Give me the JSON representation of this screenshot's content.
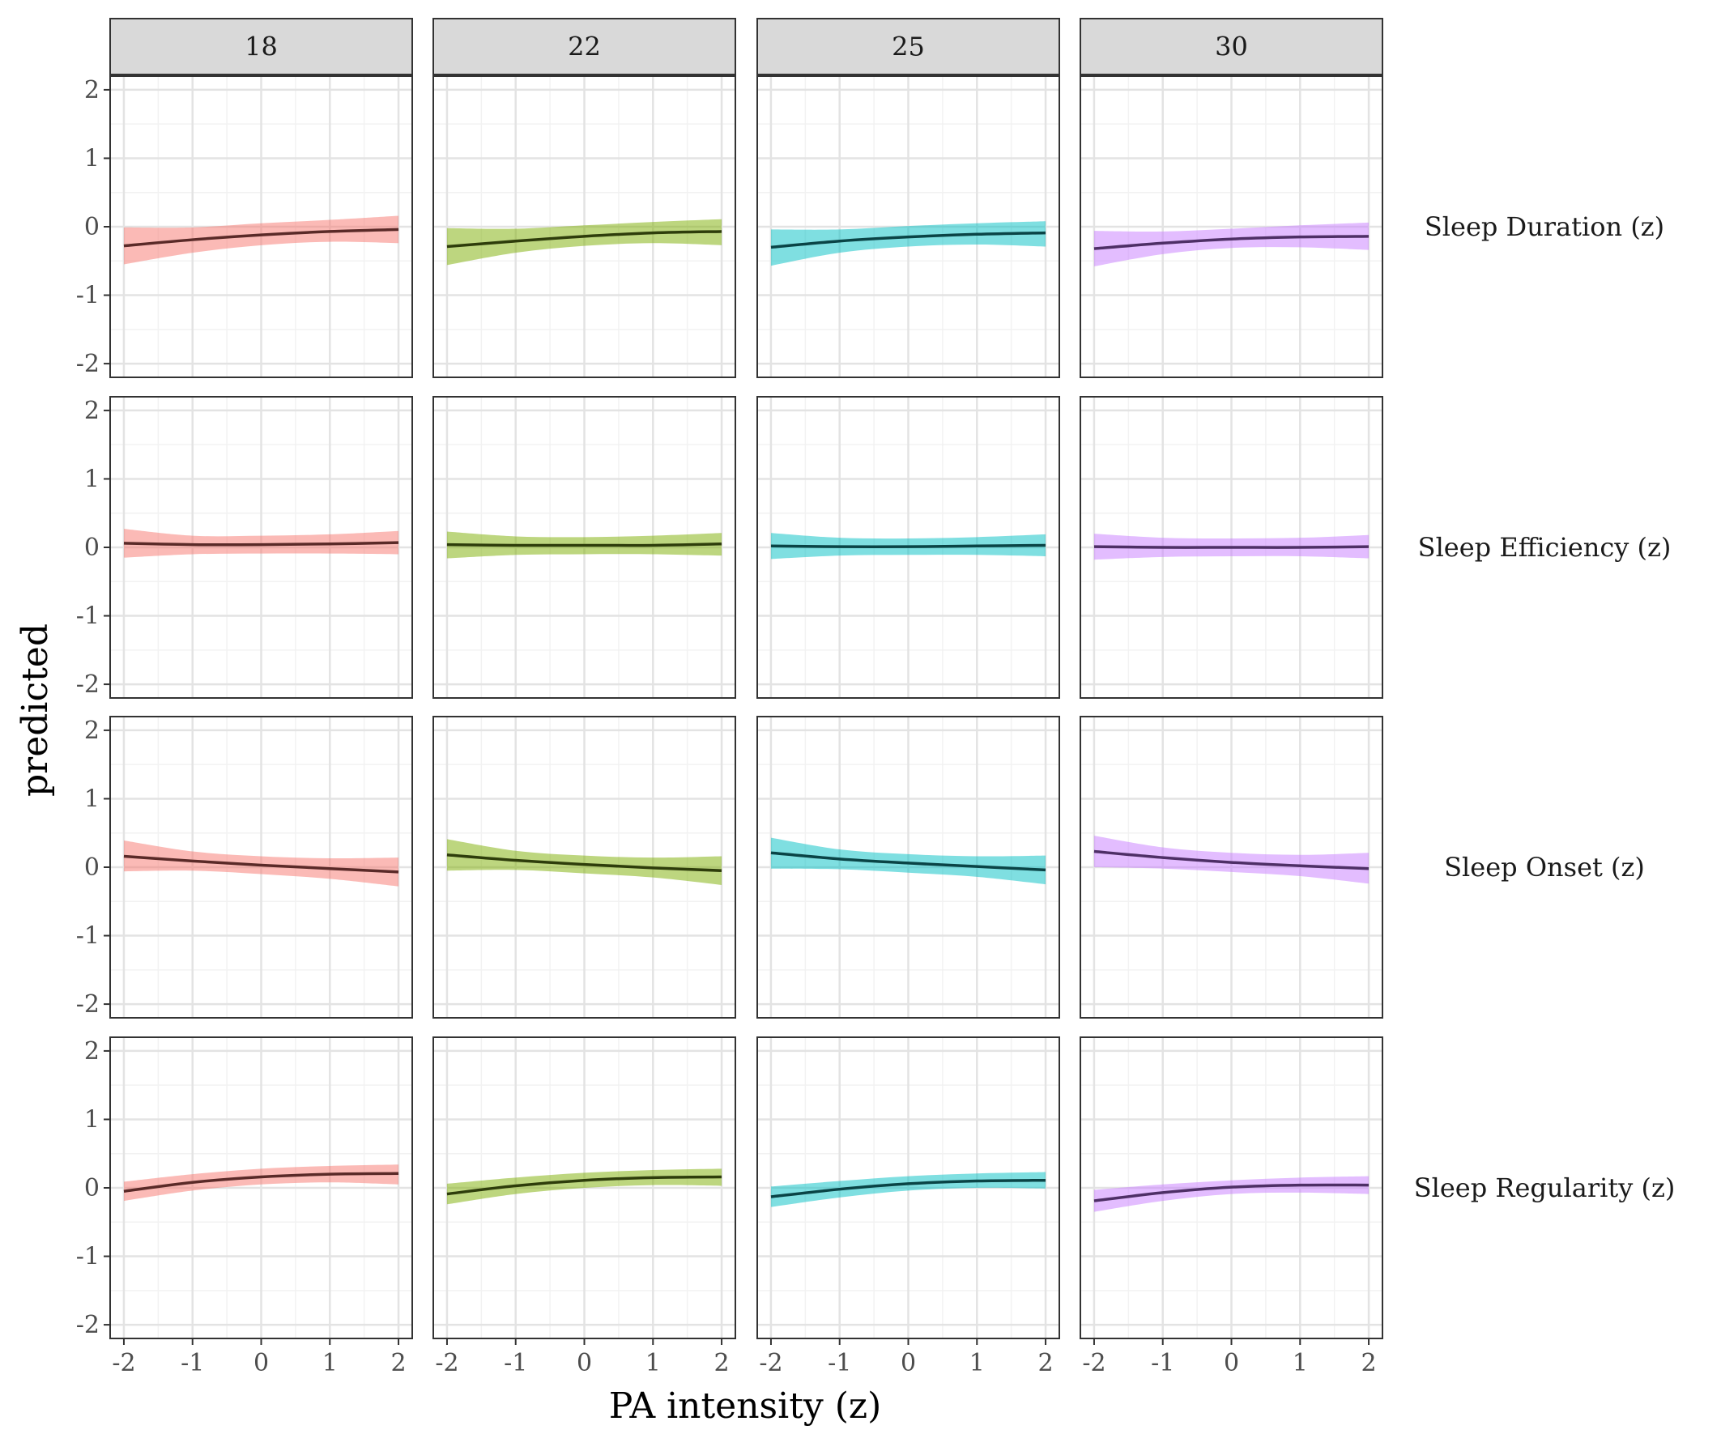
{
  "chart_data": {
    "type": "line",
    "xlabel": "PA intensity (z)",
    "ylabel": "predicted",
    "xlim": [
      -2.2,
      2.2
    ],
    "ylim": [
      -2.2,
      2.2
    ],
    "x_ticks": [
      -2,
      -1,
      0,
      1,
      2
    ],
    "y_ticks": [
      -2,
      -1,
      0,
      1,
      2
    ],
    "x_tick_labels": [
      "-2",
      "-1",
      "0",
      "1",
      "2"
    ],
    "y_tick_labels": [
      "-2",
      "-1",
      "0",
      "1",
      "2"
    ],
    "grid": true,
    "column_facets": [
      "18",
      "22",
      "25",
      "30"
    ],
    "row_facets": [
      "Sleep Duration (z)",
      "Sleep Efficiency (z)",
      "Sleep Onset (z)",
      "Sleep Regularity (z)"
    ],
    "series_colors": [
      "#F8766D",
      "#7CAE00",
      "#00BFC4",
      "#C77CFF"
    ],
    "line_colors": [
      "#5a2a28",
      "#2e3d0b",
      "#0a4446",
      "#4e2f66"
    ],
    "x": [
      -2,
      -1,
      0,
      1,
      2
    ],
    "panels": [
      [
        {
          "y": [
            -0.28,
            -0.19,
            -0.12,
            -0.07,
            -0.04
          ],
          "lower": [
            -0.55,
            -0.38,
            -0.27,
            -0.22,
            -0.24
          ],
          "upper": [
            -0.01,
            -0.01,
            0.05,
            0.1,
            0.16
          ]
        },
        {
          "y": [
            -0.29,
            -0.21,
            -0.14,
            -0.09,
            -0.07
          ],
          "lower": [
            -0.56,
            -0.38,
            -0.28,
            -0.24,
            -0.27
          ],
          "upper": [
            -0.02,
            -0.03,
            0.02,
            0.07,
            0.11
          ]
        },
        {
          "y": [
            -0.3,
            -0.21,
            -0.15,
            -0.11,
            -0.09
          ],
          "lower": [
            -0.57,
            -0.38,
            -0.29,
            -0.26,
            -0.29
          ],
          "upper": [
            -0.04,
            -0.04,
            0.01,
            0.05,
            0.08
          ]
        },
        {
          "y": [
            -0.32,
            -0.24,
            -0.18,
            -0.15,
            -0.14
          ],
          "lower": [
            -0.58,
            -0.4,
            -0.31,
            -0.3,
            -0.34
          ],
          "upper": [
            -0.06,
            -0.07,
            -0.03,
            0.02,
            0.06
          ]
        }
      ],
      [
        {
          "y": [
            0.06,
            0.04,
            0.04,
            0.05,
            0.07
          ],
          "lower": [
            -0.15,
            -0.1,
            -0.09,
            -0.09,
            -0.1
          ],
          "upper": [
            0.27,
            0.17,
            0.17,
            0.19,
            0.24
          ]
        },
        {
          "y": [
            0.04,
            0.03,
            0.03,
            0.03,
            0.05
          ],
          "lower": [
            -0.16,
            -0.11,
            -0.1,
            -0.1,
            -0.12
          ],
          "upper": [
            0.23,
            0.16,
            0.15,
            0.17,
            0.21
          ]
        },
        {
          "y": [
            0.02,
            0.01,
            0.01,
            0.02,
            0.03
          ],
          "lower": [
            -0.17,
            -0.12,
            -0.11,
            -0.11,
            -0.13
          ],
          "upper": [
            0.21,
            0.14,
            0.13,
            0.15,
            0.19
          ]
        },
        {
          "y": [
            0.01,
            0.0,
            0.0,
            0.0,
            0.01
          ],
          "lower": [
            -0.18,
            -0.14,
            -0.13,
            -0.13,
            -0.16
          ],
          "upper": [
            0.2,
            0.14,
            0.13,
            0.14,
            0.18
          ]
        }
      ],
      [
        {
          "y": [
            0.16,
            0.09,
            0.03,
            -0.02,
            -0.07
          ],
          "lower": [
            -0.06,
            -0.05,
            -0.1,
            -0.17,
            -0.28
          ],
          "upper": [
            0.39,
            0.23,
            0.16,
            0.13,
            0.14
          ]
        },
        {
          "y": [
            0.18,
            0.1,
            0.04,
            -0.01,
            -0.05
          ],
          "lower": [
            -0.05,
            -0.04,
            -0.09,
            -0.15,
            -0.26
          ],
          "upper": [
            0.41,
            0.24,
            0.17,
            0.14,
            0.16
          ]
        },
        {
          "y": [
            0.21,
            0.12,
            0.06,
            0.01,
            -0.04
          ],
          "lower": [
            -0.02,
            -0.03,
            -0.08,
            -0.14,
            -0.25
          ],
          "upper": [
            0.43,
            0.26,
            0.19,
            0.16,
            0.17
          ]
        },
        {
          "y": [
            0.23,
            0.14,
            0.07,
            0.02,
            -0.02
          ],
          "lower": [
            0.0,
            -0.02,
            -0.07,
            -0.13,
            -0.24
          ],
          "upper": [
            0.46,
            0.29,
            0.21,
            0.18,
            0.21
          ]
        }
      ],
      [
        {
          "y": [
            -0.05,
            0.08,
            0.16,
            0.2,
            0.21
          ],
          "lower": [
            -0.19,
            -0.04,
            0.05,
            0.08,
            0.05
          ],
          "upper": [
            0.09,
            0.2,
            0.28,
            0.32,
            0.34
          ]
        },
        {
          "y": [
            -0.09,
            0.03,
            0.11,
            0.15,
            0.16
          ],
          "lower": [
            -0.24,
            -0.09,
            0.0,
            0.04,
            0.03
          ],
          "upper": [
            0.06,
            0.15,
            0.22,
            0.26,
            0.28
          ]
        },
        {
          "y": [
            -0.13,
            -0.02,
            0.06,
            0.1,
            0.11
          ],
          "lower": [
            -0.28,
            -0.14,
            -0.04,
            0.0,
            -0.01
          ],
          "upper": [
            0.02,
            0.1,
            0.17,
            0.21,
            0.23
          ]
        },
        {
          "y": [
            -0.19,
            -0.07,
            0.01,
            0.04,
            0.04
          ],
          "lower": [
            -0.35,
            -0.19,
            -0.09,
            -0.07,
            -0.09
          ],
          "upper": [
            -0.03,
            0.05,
            0.11,
            0.15,
            0.17
          ]
        }
      ]
    ]
  }
}
